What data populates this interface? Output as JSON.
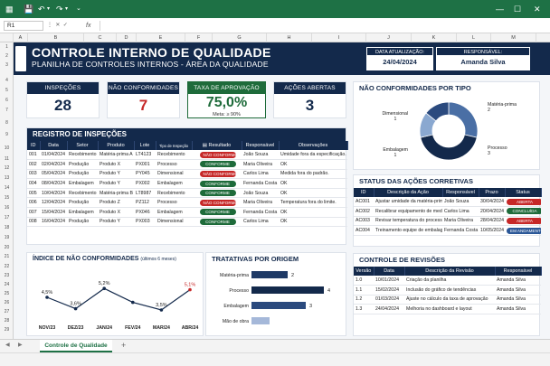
{
  "excel": {
    "name_box": "R1",
    "fx": "fx",
    "columns": [
      "A",
      "B",
      "C",
      "D",
      "E",
      "F",
      "G",
      "H",
      "I",
      "J",
      "K",
      "L",
      "M"
    ],
    "rows": [
      "1",
      "2",
      "3",
      "4",
      "5",
      "6",
      "7",
      "8",
      "9",
      "10",
      "11",
      "12",
      "13",
      "14",
      "15",
      "16",
      "17",
      "18",
      "19",
      "20",
      "21",
      "22",
      "23",
      "24",
      "25",
      "26",
      "27",
      "28",
      "29",
      "30",
      "31",
      "32",
      "33"
    ],
    "sheet_tab": "Controle de Qualidade",
    "add_sheet": "+"
  },
  "header": {
    "title": "CONTROLE INTERNO DE QUALIDADE",
    "subtitle": "PLANILHA DE CONTROLES INTERNOS - ÁREA DA QUALIDADE",
    "update_label": "DATA ATUALIZAÇÃO:",
    "update_value": "24/04/2024",
    "resp_label": "RESPONSÁVEL:",
    "resp_value": "Amanda Silva"
  },
  "kpis": {
    "inspecoes": {
      "label": "INSPEÇÕES REALIZADAS",
      "value": "28"
    },
    "nao_conf": {
      "label": "NÃO CONFORMIDADES",
      "value": "7"
    },
    "aprovacao": {
      "label": "TAXA DE APROVAÇÃO",
      "value": "75,0%",
      "meta": "Meta: ≥ 90%"
    },
    "acoes": {
      "label": "AÇÕES ABERTAS",
      "value": "3"
    }
  },
  "registro": {
    "title": "REGISTRO DE INSPEÇÕES",
    "headers": [
      "ID",
      "Data",
      "Setor",
      "Produto",
      "Lote",
      "Tipo de Inspeção",
      "Resultado",
      "Responsável",
      "Observações"
    ],
    "rows": [
      [
        "001",
        "01/04/2024",
        "Recebimento",
        "Matéria-prima A",
        "LT4123",
        "Recebimento",
        "NÃO CONFORME",
        "João Souza",
        "Umidade fora da especificação."
      ],
      [
        "002",
        "02/04/2024",
        "Produção",
        "Produto X",
        "PX001",
        "Processo",
        "CONFORME",
        "Maria Oliveira",
        "OK"
      ],
      [
        "003",
        "05/04/2024",
        "Produção",
        "Produto Y",
        "PY045",
        "Dimensional",
        "NÃO CONFORME",
        "Carlos Lima",
        "Medida fora do padrão."
      ],
      [
        "004",
        "08/04/2024",
        "Embalagem",
        "Produto Y",
        "PX002",
        "Embalagem",
        "CONFORME",
        "Fernanda Costa",
        "OK"
      ],
      [
        "005",
        "10/04/2024",
        "Recebimento",
        "Matéria-prima B",
        "LT8987",
        "Recebimento",
        "CONFORME",
        "João Souza",
        "OK"
      ],
      [
        "006",
        "12/04/2024",
        "Produção",
        "Produto Z",
        "PZ112",
        "Processo",
        "NÃO CONFORME",
        "Maria Oliveira",
        "Temperatura fora do limite."
      ],
      [
        "007",
        "15/04/2024",
        "Embalagem",
        "Produto X",
        "PX046",
        "Embalagem",
        "CONFORME",
        "Fernanda Costa",
        "OK"
      ],
      [
        "008",
        "16/04/2024",
        "Produção",
        "Produto Y",
        "PX003",
        "Dimensional",
        "CONFORME",
        "Carlos Lima",
        "OK"
      ]
    ],
    "result_header_icon": "clipboard-icon"
  },
  "indice": {
    "title": "ÍNDICE DE NÃO CONFORMIDADES",
    "subtitle": "(últimos 6 meses)"
  },
  "tratativas": {
    "title": "TRATATIVAS POR ORIGEM"
  },
  "donut": {
    "title": "NÃO CONFORMIDADES POR TIPO"
  },
  "acoes_corretivas": {
    "title": "STATUS DAS AÇÕES CORRETIVAS",
    "headers": [
      "ID",
      "Descrição da Ação",
      "Responsável",
      "Prazo",
      "Status"
    ],
    "rows": [
      [
        "AC001",
        "Ajustar umidade da matéria-prima A",
        "João Souza",
        "30/04/2024",
        "ABERTA"
      ],
      [
        "AC002",
        "Recalibrar equipamento de medição",
        "Carlos Lima",
        "20/04/2024",
        "CONCLUÍDA"
      ],
      [
        "AC003",
        "Revisar temperatura do processo",
        "Maria Oliveira",
        "28/04/2024",
        "ABERTA"
      ],
      [
        "AC004",
        "Treinamento equipe de embalagem",
        "Fernanda Costa",
        "10/05/2024",
        "EM ANDAMENTO"
      ]
    ]
  },
  "revisoes": {
    "title": "CONTROLE DE REVISÕES",
    "headers": [
      "Versão",
      "Data",
      "Descrição da Revisão",
      "Responsável"
    ],
    "rows": [
      [
        "1.0",
        "10/01/2024",
        "Criação da planilha",
        "Amanda Silva"
      ],
      [
        "1.1",
        "15/02/2024",
        "Inclusão do gráfico de tendências",
        "Amanda Silva"
      ],
      [
        "1.2",
        "01/03/2024",
        "Ajuste no cálculo da taxa de aprovação",
        "Amanda Silva"
      ],
      [
        "1.3",
        "24/04/2024",
        "Melhoria no dashboard e layout",
        "Amanda Silva"
      ]
    ]
  },
  "colors": {
    "navy": "#13294b",
    "red": "#c62828",
    "green": "#1e6b3a",
    "excel_green": "#1e7145"
  },
  "chart_data": [
    {
      "type": "line",
      "title": "ÍNDICE DE NÃO CONFORMIDADES",
      "subtitle": "(últimos 6 meses)",
      "categories": [
        "NOV/23",
        "DEZ/23",
        "JAN/24",
        "FEV/24",
        "MAR/24",
        "ABR/24"
      ],
      "values": [
        4.5,
        3.6,
        5.2,
        4.1,
        3.5,
        5.1
      ],
      "labels": [
        "4,5%",
        "3,6%",
        "5,2%",
        "",
        "3,5%",
        "5,1%"
      ],
      "ylim": [
        0,
        6
      ],
      "grid": false,
      "highlight_last": true
    },
    {
      "type": "bar",
      "orientation": "horizontal",
      "title": "TRATATIVAS POR ORIGEM",
      "categories": [
        "Matéria-prima",
        "Processo",
        "Embalagem",
        "Mão de obra"
      ],
      "values": [
        2,
        4,
        3,
        1
      ],
      "labels": [
        "2",
        "4",
        "3",
        ""
      ],
      "xlim": [
        0,
        4.5
      ]
    },
    {
      "type": "pie",
      "donut": true,
      "title": "NÃO CONFORMIDADES POR TIPO",
      "categories": [
        "Matéria-prima",
        "Processo",
        "Embalagem",
        "Dimensional"
      ],
      "values": [
        2,
        3,
        1,
        1
      ],
      "colors": [
        "#4a6fa5",
        "#13294b",
        "#8aa8d0",
        "#2b4a7e"
      ]
    }
  ]
}
